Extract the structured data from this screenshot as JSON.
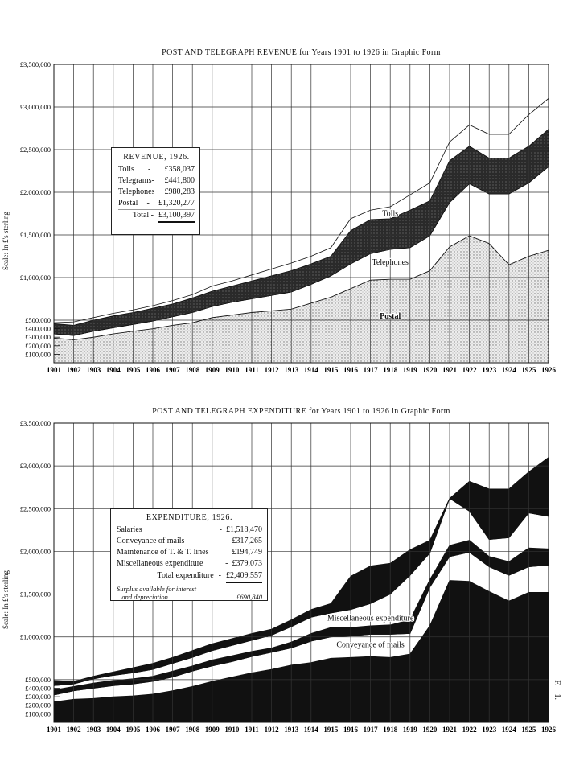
{
  "colors": {
    "ink": "#111111",
    "paper": "#ffffff",
    "stipple": "#9a9a9a",
    "grid": "#444444"
  },
  "y_axis_label": "Scale: In £'s sterling",
  "figure_ref": "F.—1.",
  "revenue_legend": {
    "heading": "REVENUE, 1926.",
    "rows": [
      {
        "label": "Tolls",
        "sep": "-",
        "value": "£358,037"
      },
      {
        "label": "Telegrams-",
        "sep": "",
        "value": "£441,800"
      },
      {
        "label": "Telephones",
        "sep": "",
        "value": "£980,283"
      },
      {
        "label": "Postal",
        "sep": "-",
        "value": "£1,320,277"
      }
    ],
    "total_label": "Total -",
    "total_value": "£3,100,397"
  },
  "expenditure_legend": {
    "heading": "EXPENDITURE, 1926.",
    "rows": [
      {
        "label": "Salaries",
        "sep": "-",
        "value": "£1,518,470"
      },
      {
        "label": "Conveyance of mails -",
        "sep": "-",
        "value": "£317,265"
      },
      {
        "label": "Maintenance of T. & T. lines",
        "sep": "",
        "value": "£194,749"
      },
      {
        "label": "Miscellaneous expenditure",
        "sep": "-",
        "value": "£379,073"
      }
    ],
    "total_label": "Total expenditure",
    "total_sep": "-",
    "total_value": "£2,409,557",
    "surplus_label_1": "Surplus available for interest",
    "surplus_label_2": "and depreciation",
    "surplus_value": "£690,840"
  },
  "chart_data": [
    {
      "type": "area",
      "stacked": true,
      "title": "POST AND TELEGRAPH REVENUE for Years 1901 to 1926 in Graphic Form",
      "xlabel": "",
      "ylabel": "Scale: In £'s sterling",
      "unit": "£ millions",
      "ylim": [
        0,
        3.5
      ],
      "grid": true,
      "x": [
        "1901",
        "1902",
        "1903",
        "1904",
        "1905",
        "1906",
        "1907",
        "1908",
        "1909",
        "1910",
        "1911",
        "1912",
        "1913",
        "1914",
        "1915",
        "1916",
        "1917",
        "1918",
        "1919",
        "1920",
        "1921",
        "1922",
        "1923",
        "1924",
        "1925",
        "1926"
      ],
      "y_ticks": [
        {
          "value": 3.5,
          "label": "£3,500,000"
        },
        {
          "value": 3.0,
          "label": "£3,000,000"
        },
        {
          "value": 2.5,
          "label": "£2,500,000"
        },
        {
          "value": 2.0,
          "label": "£2,000,000"
        },
        {
          "value": 1.5,
          "label": "£1,500,000"
        },
        {
          "value": 1.0,
          "label": "£1,000,000"
        },
        {
          "value": 0.5,
          "label": "£500,000"
        },
        {
          "value": 0.4,
          "label": "£400,000"
        },
        {
          "value": 0.3,
          "label": "£300,000"
        },
        {
          "value": 0.2,
          "label": "£200,000"
        },
        {
          "value": 0.1,
          "label": "£100,000"
        }
      ],
      "series": [
        {
          "name": "Postal",
          "fill": "stipple",
          "values": [
            0.29,
            0.27,
            0.3,
            0.34,
            0.37,
            0.4,
            0.44,
            0.47,
            0.53,
            0.56,
            0.59,
            0.61,
            0.63,
            0.7,
            0.77,
            0.87,
            0.97,
            0.98,
            0.98,
            1.08,
            1.36,
            1.49,
            1.4,
            1.15,
            1.25,
            1.32
          ]
        },
        {
          "name": "Telephones",
          "fill": "white",
          "values": [
            0.05,
            0.05,
            0.07,
            0.07,
            0.08,
            0.09,
            0.1,
            0.12,
            0.13,
            0.15,
            0.16,
            0.18,
            0.2,
            0.22,
            0.25,
            0.29,
            0.31,
            0.35,
            0.37,
            0.41,
            0.52,
            0.61,
            0.58,
            0.83,
            0.86,
            0.98
          ]
        },
        {
          "name": "Telegrams",
          "fill": "dark",
          "values": [
            0.12,
            0.12,
            0.13,
            0.14,
            0.14,
            0.15,
            0.15,
            0.17,
            0.18,
            0.19,
            0.21,
            0.23,
            0.25,
            0.24,
            0.23,
            0.39,
            0.4,
            0.36,
            0.44,
            0.41,
            0.49,
            0.44,
            0.42,
            0.42,
            0.43,
            0.44
          ]
        },
        {
          "name": "Tolls",
          "fill": "white",
          "values": [
            0.01,
            0.04,
            0.03,
            0.03,
            0.03,
            0.03,
            0.04,
            0.04,
            0.06,
            0.06,
            0.07,
            0.08,
            0.09,
            0.09,
            0.1,
            0.14,
            0.11,
            0.14,
            0.18,
            0.21,
            0.22,
            0.25,
            0.28,
            0.28,
            0.37,
            0.36
          ]
        }
      ],
      "annotations": [
        {
          "text": "Tolls",
          "year": "1918",
          "value": 1.72
        },
        {
          "text": "Telephones",
          "year": "1918",
          "value": 1.15
        },
        {
          "text": "Postal",
          "year": "1918",
          "value": 0.52
        }
      ]
    },
    {
      "type": "area",
      "stacked": true,
      "title": "POST AND TELEGRAPH EXPENDITURE for Years 1901 to 1926 in Graphic Form",
      "xlabel": "",
      "ylabel": "Scale: In £'s sterling",
      "unit": "£ millions",
      "ylim": [
        0,
        3.5
      ],
      "grid": true,
      "x": [
        "1901",
        "1902",
        "1903",
        "1904",
        "1905",
        "1906",
        "1907",
        "1908",
        "1909",
        "1910",
        "1911",
        "1912",
        "1913",
        "1914",
        "1915",
        "1916",
        "1917",
        "1918",
        "1919",
        "1920",
        "1921",
        "1922",
        "1923",
        "1924",
        "1925",
        "1926"
      ],
      "y_ticks": [
        {
          "value": 3.5,
          "label": "£3,500,000"
        },
        {
          "value": 3.0,
          "label": "£3,000,000"
        },
        {
          "value": 2.5,
          "label": "£2,500,000"
        },
        {
          "value": 2.0,
          "label": "£2,000,000"
        },
        {
          "value": 1.5,
          "label": "£1,500,000"
        },
        {
          "value": 1.0,
          "label": "£1,000,000"
        },
        {
          "value": 0.5,
          "label": "£500,000"
        },
        {
          "value": 0.4,
          "label": "£400,000"
        },
        {
          "value": 0.3,
          "label": "£300,000"
        },
        {
          "value": 0.2,
          "label": "£200,000"
        },
        {
          "value": 0.1,
          "label": "£100,000"
        }
      ],
      "series": [
        {
          "name": "Salaries",
          "fill": "black",
          "values": [
            0.24,
            0.27,
            0.28,
            0.3,
            0.31,
            0.33,
            0.37,
            0.42,
            0.48,
            0.53,
            0.58,
            0.62,
            0.67,
            0.7,
            0.75,
            0.76,
            0.77,
            0.76,
            0.8,
            1.13,
            1.66,
            1.65,
            1.53,
            1.42,
            1.52,
            1.52
          ]
        },
        {
          "name": "Conveyance of mails",
          "fill": "white",
          "values": [
            0.08,
            0.1,
            0.12,
            0.13,
            0.14,
            0.15,
            0.16,
            0.18,
            0.18,
            0.18,
            0.19,
            0.2,
            0.2,
            0.25,
            0.25,
            0.25,
            0.26,
            0.27,
            0.24,
            0.45,
            0.28,
            0.34,
            0.29,
            0.3,
            0.3,
            0.32
          ]
        },
        {
          "name": "Maintenance of T. & T. lines",
          "fill": "black",
          "values": [
            0.06,
            0.05,
            0.06,
            0.06,
            0.06,
            0.06,
            0.07,
            0.06,
            0.07,
            0.07,
            0.06,
            0.05,
            0.07,
            0.09,
            0.11,
            0.1,
            0.1,
            0.11,
            0.16,
            0.09,
            0.13,
            0.14,
            0.12,
            0.16,
            0.22,
            0.19
          ]
        },
        {
          "name": "Miscellaneous expenditure",
          "fill": "white",
          "values": [
            0.05,
            0.03,
            0.05,
            0.06,
            0.07,
            0.08,
            0.09,
            0.1,
            0.11,
            0.12,
            0.13,
            0.15,
            0.18,
            0.19,
            0.17,
            0.21,
            0.26,
            0.36,
            0.52,
            0.31,
            0.55,
            0.34,
            0.2,
            0.28,
            0.41,
            0.38
          ]
        },
        {
          "name": "Surplus",
          "fill": "black",
          "values": [
            0.06,
            0.03,
            0.03,
            0.04,
            0.06,
            0.07,
            0.07,
            0.08,
            0.08,
            0.08,
            0.08,
            0.07,
            0.08,
            0.09,
            0.11,
            0.39,
            0.44,
            0.36,
            0.3,
            0.15,
            0.0,
            0.35,
            0.59,
            0.57,
            0.48,
            0.69
          ]
        }
      ],
      "annotations": [
        {
          "text": "Miscellaneous expenditure",
          "year": "1917",
          "value": 1.19
        },
        {
          "text": "Conveyance of mails",
          "year": "1917",
          "value": 0.88
        }
      ]
    }
  ]
}
